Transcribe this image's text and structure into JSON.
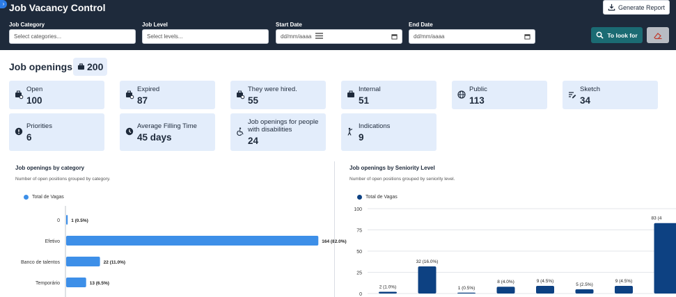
{
  "header": {
    "title": "Job Vacancy Control",
    "generate_report": "Generate Report",
    "filters": {
      "category": {
        "label": "Job Category",
        "placeholder": "Select categories..."
      },
      "level": {
        "label": "Job Level",
        "placeholder": "Select levels..."
      },
      "start": {
        "label": "Start Date",
        "value": "dd/mm/aaaa"
      },
      "end": {
        "label": "End Date",
        "value": "dd/mm/aaaa"
      }
    },
    "look_button": "To look for"
  },
  "summary": {
    "title": "Job openings:",
    "total": "200"
  },
  "cards": [
    {
      "label": "Open",
      "value": "100",
      "icon": "briefcase-clock-icon"
    },
    {
      "label": "Expired",
      "value": "87",
      "icon": "briefcase-x-icon"
    },
    {
      "label": "They were hired.",
      "value": "55",
      "icon": "briefcase-check-icon"
    },
    {
      "label": "Internal",
      "value": "51",
      "icon": "briefcase-icon"
    },
    {
      "label": "Public",
      "value": "113",
      "icon": "globe-icon"
    },
    {
      "label": "Sketch",
      "value": "34",
      "icon": "draft-icon"
    },
    {
      "label": "Priorities",
      "value": "6",
      "icon": "alert-icon"
    },
    {
      "label": "Average Filling Time",
      "value": "45 days",
      "icon": "clock-icon"
    },
    {
      "label": "Job openings for people with disabilities",
      "value": "24",
      "icon": "accessibility-icon"
    },
    {
      "label": "Indications",
      "value": "9",
      "icon": "referral-icon"
    }
  ],
  "colors": {
    "header": "#1e2a3b",
    "card": "#e3edfb",
    "bar_light": "#3d8fe8",
    "bar_dark": "#0d4182"
  },
  "chart_data": [
    {
      "type": "bar",
      "orientation": "horizontal",
      "title": "Job openings by category",
      "subtitle": "Number of open positions grouped by category.",
      "categories": [
        "0",
        "Efetivo",
        "Banco de talentos",
        "Temporário"
      ],
      "series": [
        {
          "name": "Total de Vagas",
          "values": [
            1,
            164,
            22,
            13
          ]
        }
      ],
      "data_labels": [
        "1 (0.5%)",
        "164 (82.0%)",
        "22 (11.0%)",
        "13 (6.5%)"
      ],
      "xlim": [
        0,
        200
      ],
      "grid": false,
      "legend": "top-left"
    },
    {
      "type": "bar",
      "orientation": "vertical",
      "title": "Job openings by Seniority Level",
      "subtitle": "Number of open positions grouped by seniority level.",
      "series": [
        {
          "name": "Total de Vagas",
          "values": [
            2,
            32,
            1,
            8,
            9,
            5,
            9,
            83
          ]
        }
      ],
      "data_labels": [
        "2 (1.0%)",
        "32 (16.0%)",
        "1 (0.5%)",
        "8 (4.0%)",
        "9 (4.5%)",
        "5 (2.5%)",
        "9 (4.5%)",
        "83 (4"
      ],
      "y_ticks": [
        "0",
        "25",
        "50",
        "75",
        "100"
      ],
      "ylim": [
        0,
        100
      ],
      "grid": true,
      "legend": "top-left"
    }
  ]
}
